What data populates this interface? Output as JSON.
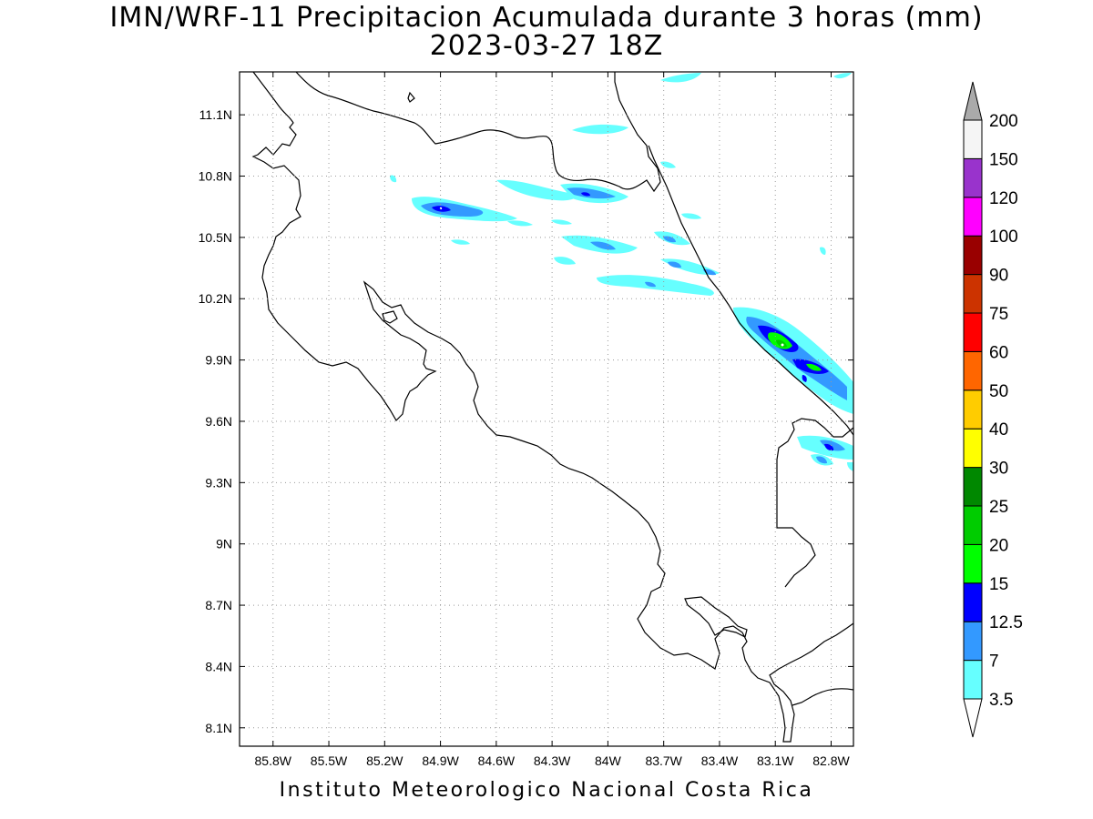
{
  "title": "IMN/WRF-11 Precipitacion Acumulada durante 3 horas (mm)",
  "subtitle": "2023-03-27 18Z",
  "credit": "Instituto Meteorologico Nacional Costa Rica",
  "map": {
    "lon_range": [
      -85.98,
      -82.68
    ],
    "lat_range": [
      8.01,
      11.31
    ],
    "lon_ticks": [
      {
        "value": -85.8,
        "label": "85.8W"
      },
      {
        "value": -85.5,
        "label": "85.5W"
      },
      {
        "value": -85.2,
        "label": "85.2W"
      },
      {
        "value": -84.9,
        "label": "84.9W"
      },
      {
        "value": -84.6,
        "label": "84.6W"
      },
      {
        "value": -84.3,
        "label": "84.3W"
      },
      {
        "value": -84.0,
        "label": "84W"
      },
      {
        "value": -83.7,
        "label": "83.7W"
      },
      {
        "value": -83.4,
        "label": "83.4W"
      },
      {
        "value": -83.1,
        "label": "83.1W"
      },
      {
        "value": -82.8,
        "label": "82.8W"
      }
    ],
    "lat_ticks": [
      {
        "value": 11.1,
        "label": "11.1N"
      },
      {
        "value": 10.8,
        "label": "10.8N"
      },
      {
        "value": 10.5,
        "label": "10.5N"
      },
      {
        "value": 10.2,
        "label": "10.2N"
      },
      {
        "value": 9.9,
        "label": "9.9N"
      },
      {
        "value": 9.6,
        "label": "9.6N"
      },
      {
        "value": 9.3,
        "label": "9.3N"
      },
      {
        "value": 9.0,
        "label": "9N"
      },
      {
        "value": 8.7,
        "label": "8.7N"
      },
      {
        "value": 8.4,
        "label": "8.4N"
      },
      {
        "value": 8.1,
        "label": "8.1N"
      }
    ],
    "grid": true
  },
  "colorbar": {
    "labels": [
      "3.5",
      "7",
      "12.5",
      "15",
      "20",
      "25",
      "30",
      "40",
      "50",
      "60",
      "75",
      "90",
      "100",
      "120",
      "150",
      "200"
    ],
    "colors": [
      "#ffffff",
      "#66ffff",
      "#3399ff",
      "#0000ff",
      "#00ff00",
      "#00cc00",
      "#008800",
      "#ffff00",
      "#ffcc00",
      "#ff6600",
      "#ff0000",
      "#cc3300",
      "#990000",
      "#ff00ff",
      "#9933cc",
      "#f5f5f5",
      "#aaaaaa"
    ]
  },
  "precip_cells": [
    {
      "lon": -84.82,
      "lat": 10.62,
      "level": 1
    },
    {
      "lon": -84.72,
      "lat": 10.62,
      "level": 2
    },
    {
      "lon": -84.84,
      "lat": 10.63,
      "level": 3
    },
    {
      "lon": -84.42,
      "lat": 10.72,
      "level": 1
    },
    {
      "lon": -84.0,
      "lat": 10.7,
      "level": 2
    },
    {
      "lon": -83.97,
      "lat": 10.69,
      "level": 3
    },
    {
      "lon": -83.88,
      "lat": 10.45,
      "level": 2
    },
    {
      "lon": -83.6,
      "lat": 10.48,
      "level": 2
    },
    {
      "lon": -83.55,
      "lat": 10.36,
      "level": 1
    },
    {
      "lon": -83.55,
      "lat": 10.35,
      "level": 2
    },
    {
      "lon": -83.82,
      "lat": 10.27,
      "level": 1
    },
    {
      "lon": -82.92,
      "lat": 9.98,
      "level": 2
    },
    {
      "lon": -82.9,
      "lat": 9.97,
      "level": 3
    },
    {
      "lon": -82.9,
      "lat": 9.96,
      "level": 4
    },
    {
      "lon": -82.9,
      "lat": 9.96,
      "level": 5
    },
    {
      "lon": -82.75,
      "lat": 9.85,
      "level": 3
    },
    {
      "lon": -82.74,
      "lat": 9.85,
      "level": 4
    },
    {
      "lon": -82.77,
      "lat": 9.44,
      "level": 3
    },
    {
      "lon": -83.9,
      "lat": 11.01,
      "level": 1
    },
    {
      "lon": -83.45,
      "lat": 11.28,
      "level": 1
    }
  ]
}
